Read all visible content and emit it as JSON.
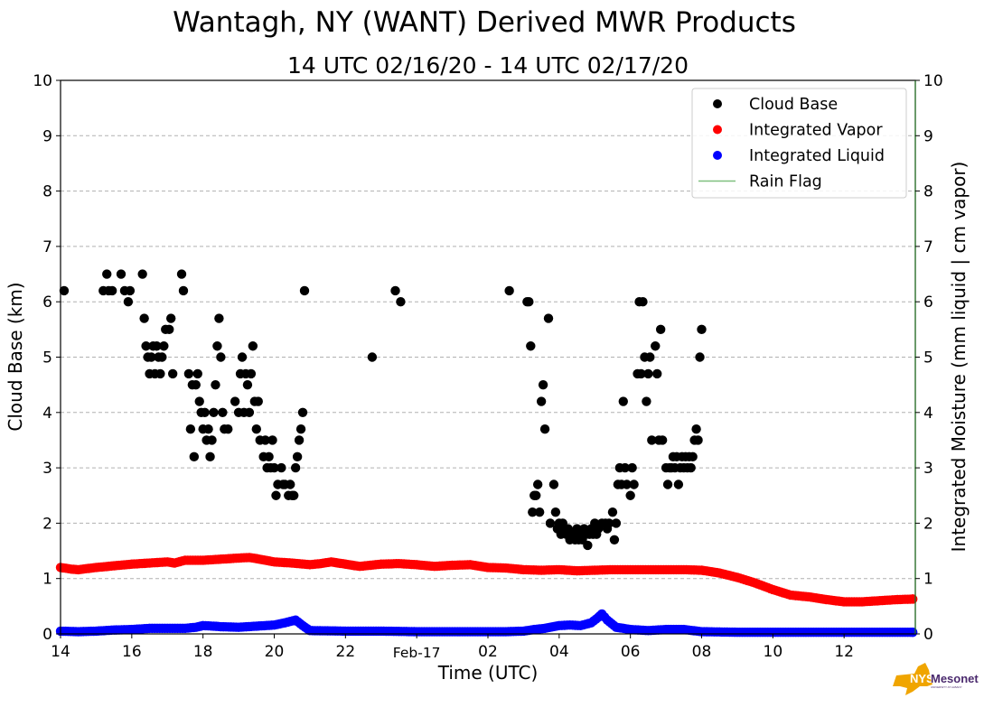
{
  "chart_data": {
    "type": "scatter",
    "title": "Wantagh, NY (WANT) Derived MWR Products",
    "subtitle": "14 UTC 02/16/20 - 14 UTC 02/17/20",
    "xlabel": "Time (UTC)",
    "ylabel": "Cloud Base (km)",
    "ylabel_right": "Integrated Moisture (mm liquid | cm vapor)",
    "x_unit": "hours since 14 UTC 02/16/20",
    "xlim": [
      0,
      24
    ],
    "ylim": [
      0,
      10
    ],
    "ylim_right": [
      0,
      10
    ],
    "grid": "horizontal dashed",
    "x_ticks": [
      {
        "x": 0,
        "label": "14"
      },
      {
        "x": 2,
        "label": "16"
      },
      {
        "x": 4,
        "label": "18"
      },
      {
        "x": 6,
        "label": "20"
      },
      {
        "x": 8,
        "label": "22"
      },
      {
        "x": 10,
        "label": "Feb-17"
      },
      {
        "x": 12,
        "label": "02"
      },
      {
        "x": 14,
        "label": "04"
      },
      {
        "x": 16,
        "label": "06"
      },
      {
        "x": 18,
        "label": "08"
      },
      {
        "x": 20,
        "label": "10"
      },
      {
        "x": 22,
        "label": "12"
      }
    ],
    "y_ticks": [
      "0",
      "1",
      "2",
      "3",
      "4",
      "5",
      "6",
      "7",
      "8",
      "9",
      "10"
    ],
    "y_ticks_right": [
      "0",
      "1",
      "2",
      "3",
      "4",
      "5",
      "6",
      "7",
      "8",
      "9",
      "10"
    ],
    "legend": {
      "placement": "top-right",
      "entries": [
        {
          "label": "Cloud Base",
          "marker": "dot",
          "color": "#000000"
        },
        {
          "label": "Integrated Vapor",
          "marker": "dot",
          "color": "#ff0000"
        },
        {
          "label": "Integrated Liquid",
          "marker": "dot",
          "color": "#0000ff"
        },
        {
          "label": "Rain Flag",
          "marker": "line",
          "color": "#7fbf7f"
        }
      ]
    },
    "series": [
      {
        "name": "Cloud Base",
        "color": "#000000",
        "points": [
          [
            0.1,
            6.2
          ],
          [
            1.2,
            6.2
          ],
          [
            1.3,
            6.5
          ],
          [
            1.35,
            6.2
          ],
          [
            1.45,
            6.2
          ],
          [
            1.7,
            6.5
          ],
          [
            1.8,
            6.2
          ],
          [
            1.9,
            6.0
          ],
          [
            1.95,
            6.2
          ],
          [
            2.3,
            6.5
          ],
          [
            2.35,
            5.7
          ],
          [
            2.4,
            5.2
          ],
          [
            2.45,
            5.0
          ],
          [
            2.5,
            4.7
          ],
          [
            2.6,
            5.2
          ],
          [
            2.55,
            5.0
          ],
          [
            2.65,
            4.7
          ],
          [
            2.7,
            5.2
          ],
          [
            2.75,
            5.0
          ],
          [
            2.8,
            4.7
          ],
          [
            2.85,
            5.0
          ],
          [
            2.9,
            5.2
          ],
          [
            2.95,
            5.5
          ],
          [
            3.05,
            5.5
          ],
          [
            3.1,
            5.7
          ],
          [
            3.15,
            4.7
          ],
          [
            3.4,
            6.5
          ],
          [
            3.45,
            6.2
          ],
          [
            3.6,
            4.7
          ],
          [
            3.65,
            3.7
          ],
          [
            3.7,
            4.5
          ],
          [
            3.75,
            3.2
          ],
          [
            3.8,
            4.5
          ],
          [
            3.85,
            4.7
          ],
          [
            3.9,
            4.2
          ],
          [
            3.95,
            4.0
          ],
          [
            4.0,
            3.7
          ],
          [
            4.05,
            4.0
          ],
          [
            4.1,
            3.5
          ],
          [
            4.15,
            3.7
          ],
          [
            4.2,
            3.2
          ],
          [
            4.25,
            3.5
          ],
          [
            4.3,
            4.0
          ],
          [
            4.35,
            4.5
          ],
          [
            4.4,
            5.2
          ],
          [
            4.45,
            5.7
          ],
          [
            4.5,
            5.0
          ],
          [
            4.55,
            4.0
          ],
          [
            4.6,
            3.7
          ],
          [
            4.7,
            3.7
          ],
          [
            4.9,
            4.2
          ],
          [
            5.0,
            4.0
          ],
          [
            5.05,
            4.7
          ],
          [
            5.1,
            5.0
          ],
          [
            5.15,
            4.0
          ],
          [
            5.2,
            4.7
          ],
          [
            5.25,
            4.5
          ],
          [
            5.3,
            4.0
          ],
          [
            5.35,
            4.7
          ],
          [
            5.4,
            5.2
          ],
          [
            5.45,
            4.2
          ],
          [
            5.5,
            3.7
          ],
          [
            5.55,
            4.2
          ],
          [
            5.6,
            3.5
          ],
          [
            5.7,
            3.2
          ],
          [
            5.75,
            3.5
          ],
          [
            5.8,
            3.0
          ],
          [
            5.85,
            3.2
          ],
          [
            5.9,
            3.0
          ],
          [
            5.95,
            3.5
          ],
          [
            6.0,
            3.0
          ],
          [
            6.05,
            2.5
          ],
          [
            6.1,
            2.7
          ],
          [
            6.2,
            3.0
          ],
          [
            6.25,
            2.7
          ],
          [
            6.3,
            2.7
          ],
          [
            6.4,
            2.5
          ],
          [
            6.45,
            2.7
          ],
          [
            6.5,
            2.5
          ],
          [
            6.55,
            2.5
          ],
          [
            6.6,
            3.0
          ],
          [
            6.65,
            3.2
          ],
          [
            6.7,
            3.5
          ],
          [
            6.75,
            3.7
          ],
          [
            6.8,
            4.0
          ],
          [
            6.85,
            6.2
          ],
          [
            8.75,
            5.0
          ],
          [
            9.4,
            6.2
          ],
          [
            9.55,
            6.0
          ],
          [
            12.6,
            6.2
          ],
          [
            13.1,
            6.0
          ],
          [
            13.15,
            6.0
          ],
          [
            13.2,
            5.2
          ],
          [
            13.25,
            2.2
          ],
          [
            13.3,
            2.5
          ],
          [
            13.35,
            2.5
          ],
          [
            13.4,
            2.7
          ],
          [
            13.45,
            2.2
          ],
          [
            13.5,
            4.2
          ],
          [
            13.55,
            4.5
          ],
          [
            13.6,
            3.7
          ],
          [
            13.7,
            5.7
          ],
          [
            13.75,
            2.0
          ],
          [
            13.85,
            2.7
          ],
          [
            13.9,
            2.2
          ],
          [
            13.95,
            1.9
          ],
          [
            14.0,
            2.0
          ],
          [
            14.05,
            1.8
          ],
          [
            14.1,
            2.0
          ],
          [
            14.15,
            1.9
          ],
          [
            14.2,
            1.8
          ],
          [
            14.25,
            1.9
          ],
          [
            14.3,
            1.7
          ],
          [
            14.35,
            1.8
          ],
          [
            14.4,
            1.8
          ],
          [
            14.45,
            1.7
          ],
          [
            14.5,
            1.9
          ],
          [
            14.55,
            1.7
          ],
          [
            14.6,
            1.8
          ],
          [
            14.65,
            1.7
          ],
          [
            14.7,
            1.9
          ],
          [
            14.75,
            1.8
          ],
          [
            14.8,
            1.6
          ],
          [
            14.85,
            1.8
          ],
          [
            14.9,
            1.9
          ],
          [
            14.95,
            1.8
          ],
          [
            15.0,
            2.0
          ],
          [
            15.05,
            1.8
          ],
          [
            15.1,
            1.9
          ],
          [
            15.2,
            2.0
          ],
          [
            15.3,
            2.0
          ],
          [
            15.35,
            1.9
          ],
          [
            15.4,
            2.0
          ],
          [
            15.5,
            2.2
          ],
          [
            15.55,
            1.7
          ],
          [
            15.6,
            2.0
          ],
          [
            15.65,
            2.7
          ],
          [
            15.7,
            3.0
          ],
          [
            15.75,
            2.7
          ],
          [
            15.8,
            4.2
          ],
          [
            15.85,
            3.0
          ],
          [
            15.9,
            2.7
          ],
          [
            16.0,
            2.5
          ],
          [
            16.05,
            3.0
          ],
          [
            16.1,
            2.7
          ],
          [
            16.2,
            4.7
          ],
          [
            16.25,
            6.0
          ],
          [
            16.3,
            4.7
          ],
          [
            16.35,
            6.0
          ],
          [
            16.4,
            5.0
          ],
          [
            16.45,
            4.2
          ],
          [
            16.5,
            4.7
          ],
          [
            16.55,
            5.0
          ],
          [
            16.6,
            3.5
          ],
          [
            16.7,
            5.2
          ],
          [
            16.75,
            4.7
          ],
          [
            16.8,
            3.5
          ],
          [
            16.85,
            5.5
          ],
          [
            16.9,
            3.5
          ],
          [
            17.0,
            3.0
          ],
          [
            17.05,
            2.7
          ],
          [
            17.1,
            3.0
          ],
          [
            17.15,
            3.0
          ],
          [
            17.2,
            3.2
          ],
          [
            17.25,
            3.0
          ],
          [
            17.3,
            3.2
          ],
          [
            17.35,
            2.7
          ],
          [
            17.4,
            3.0
          ],
          [
            17.45,
            3.2
          ],
          [
            17.5,
            3.0
          ],
          [
            17.55,
            3.2
          ],
          [
            17.6,
            3.0
          ],
          [
            17.65,
            3.2
          ],
          [
            17.7,
            3.0
          ],
          [
            17.75,
            3.2
          ],
          [
            17.8,
            3.5
          ],
          [
            17.85,
            3.7
          ],
          [
            17.9,
            3.5
          ],
          [
            17.95,
            5.0
          ],
          [
            18.0,
            5.5
          ]
        ]
      },
      {
        "name": "Integrated Vapor",
        "color": "#ff0000",
        "points": [
          [
            0,
            1.2
          ],
          [
            0.3,
            1.17
          ],
          [
            0.5,
            1.16
          ],
          [
            1,
            1.2
          ],
          [
            1.5,
            1.23
          ],
          [
            2,
            1.26
          ],
          [
            2.5,
            1.28
          ],
          [
            3,
            1.3
          ],
          [
            3.2,
            1.28
          ],
          [
            3.5,
            1.33
          ],
          [
            4,
            1.33
          ],
          [
            4.5,
            1.35
          ],
          [
            5,
            1.37
          ],
          [
            5.3,
            1.38
          ],
          [
            5.5,
            1.36
          ],
          [
            6,
            1.3
          ],
          [
            6.5,
            1.28
          ],
          [
            7,
            1.25
          ],
          [
            7.3,
            1.27
          ],
          [
            7.6,
            1.3
          ],
          [
            8,
            1.26
          ],
          [
            8.4,
            1.22
          ],
          [
            9,
            1.26
          ],
          [
            9.5,
            1.27
          ],
          [
            10,
            1.25
          ],
          [
            10.5,
            1.22
          ],
          [
            11,
            1.24
          ],
          [
            11.5,
            1.25
          ],
          [
            12,
            1.2
          ],
          [
            12.5,
            1.19
          ],
          [
            13,
            1.16
          ],
          [
            13.5,
            1.15
          ],
          [
            14,
            1.16
          ],
          [
            14.5,
            1.14
          ],
          [
            15,
            1.15
          ],
          [
            15.5,
            1.16
          ],
          [
            16,
            1.16
          ],
          [
            16.5,
            1.16
          ],
          [
            17,
            1.16
          ],
          [
            17.5,
            1.16
          ],
          [
            18,
            1.15
          ],
          [
            18.5,
            1.1
          ],
          [
            19,
            1.02
          ],
          [
            19.5,
            0.92
          ],
          [
            20,
            0.8
          ],
          [
            20.5,
            0.7
          ],
          [
            21,
            0.67
          ],
          [
            21.5,
            0.62
          ],
          [
            22,
            0.58
          ],
          [
            22.5,
            0.58
          ],
          [
            23,
            0.6
          ],
          [
            23.5,
            0.62
          ],
          [
            24,
            0.63
          ]
        ]
      },
      {
        "name": "Integrated Liquid",
        "color": "#0000ff",
        "points": [
          [
            0,
            0.05
          ],
          [
            0.5,
            0.04
          ],
          [
            1,
            0.05
          ],
          [
            1.5,
            0.07
          ],
          [
            2,
            0.08
          ],
          [
            2.5,
            0.1
          ],
          [
            3,
            0.1
          ],
          [
            3.5,
            0.1
          ],
          [
            3.8,
            0.12
          ],
          [
            4,
            0.15
          ],
          [
            4.3,
            0.14
          ],
          [
            4.5,
            0.13
          ],
          [
            5,
            0.12
          ],
          [
            5.5,
            0.14
          ],
          [
            6,
            0.16
          ],
          [
            6.3,
            0.2
          ],
          [
            6.6,
            0.25
          ],
          [
            6.8,
            0.15
          ],
          [
            7,
            0.06
          ],
          [
            8,
            0.05
          ],
          [
            9,
            0.05
          ],
          [
            10,
            0.04
          ],
          [
            11,
            0.04
          ],
          [
            12,
            0.04
          ],
          [
            12.5,
            0.04
          ],
          [
            13,
            0.05
          ],
          [
            13.3,
            0.08
          ],
          [
            13.6,
            0.1
          ],
          [
            14,
            0.15
          ],
          [
            14.3,
            0.16
          ],
          [
            14.6,
            0.15
          ],
          [
            14.9,
            0.2
          ],
          [
            15.1,
            0.3
          ],
          [
            15.2,
            0.36
          ],
          [
            15.35,
            0.25
          ],
          [
            15.6,
            0.12
          ],
          [
            16,
            0.08
          ],
          [
            16.5,
            0.06
          ],
          [
            17,
            0.08
          ],
          [
            17.5,
            0.08
          ],
          [
            18,
            0.04
          ],
          [
            19,
            0.03
          ],
          [
            20,
            0.03
          ],
          [
            21,
            0.03
          ],
          [
            22,
            0.03
          ],
          [
            23,
            0.03
          ],
          [
            24,
            0.03
          ]
        ]
      },
      {
        "name": "Rain Flag",
        "color": "#7fbf7f",
        "points": []
      }
    ]
  },
  "logo": {
    "name": "NYS Mesonet",
    "nys": "NYS",
    "mesonet": "Mesonet",
    "sub": "UNIVERSITY AT ALBANY",
    "gold": "#f0a500",
    "purple": "#4b2a6e"
  }
}
